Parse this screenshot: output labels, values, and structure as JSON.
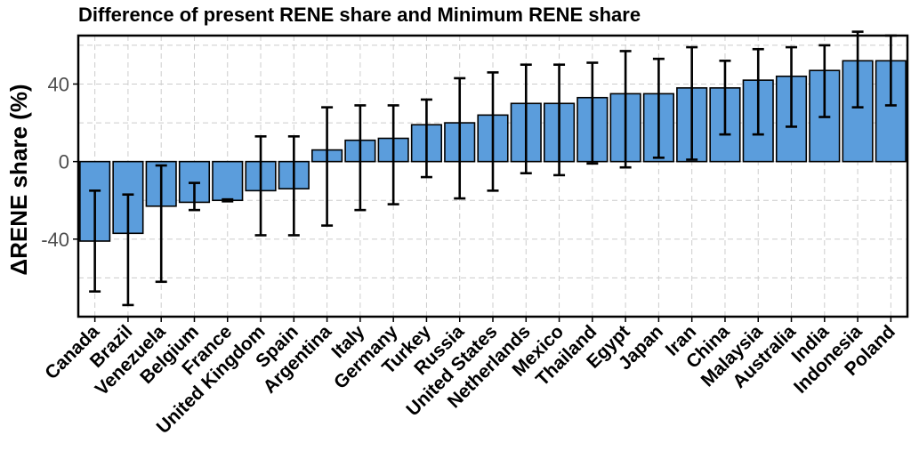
{
  "chart_data": {
    "type": "bar",
    "title": "Difference of present RENE share and Minimum RENE share",
    "ylabel": "ΔRENE share (%)",
    "xlabel": "",
    "ylim": [
      -80,
      65
    ],
    "yticks": [
      -40,
      0,
      40
    ],
    "grid": true,
    "legend": "none",
    "colors": {
      "bar": "#5b9ddc",
      "outline": "#000000",
      "grid": "#cccccc"
    },
    "categories": [
      "Canada",
      "Brazil",
      "Venezuela",
      "Belgium",
      "France",
      "United Kingdom",
      "Spain",
      "Argentina",
      "Italy",
      "Germany",
      "Turkey",
      "Russia",
      "United States",
      "Netherlands",
      "Mexico",
      "Thailand",
      "Egypt",
      "Japan",
      "Iran",
      "China",
      "Malaysia",
      "Australia",
      "India",
      "Indonesia",
      "Poland"
    ],
    "values": [
      -41,
      -37,
      -23,
      -21,
      -20,
      -15,
      -14,
      6,
      11,
      12,
      19,
      20,
      24,
      30,
      30,
      33,
      35,
      35,
      38,
      38,
      42,
      44,
      47,
      52,
      52
    ],
    "err_low": [
      -67,
      -74,
      -62,
      -25,
      -20.5,
      -38,
      -38,
      -33,
      -25,
      -22,
      -8,
      -19,
      -15,
      -6,
      -7,
      -1,
      -3,
      2,
      1,
      14,
      14,
      18,
      23,
      28,
      29
    ],
    "err_high": [
      -15,
      -17,
      -2,
      -11,
      -19.5,
      13,
      13,
      28,
      29,
      29,
      32,
      43,
      46,
      50,
      50,
      51,
      57,
      53,
      59,
      52,
      58,
      59,
      60,
      67,
      65
    ]
  }
}
